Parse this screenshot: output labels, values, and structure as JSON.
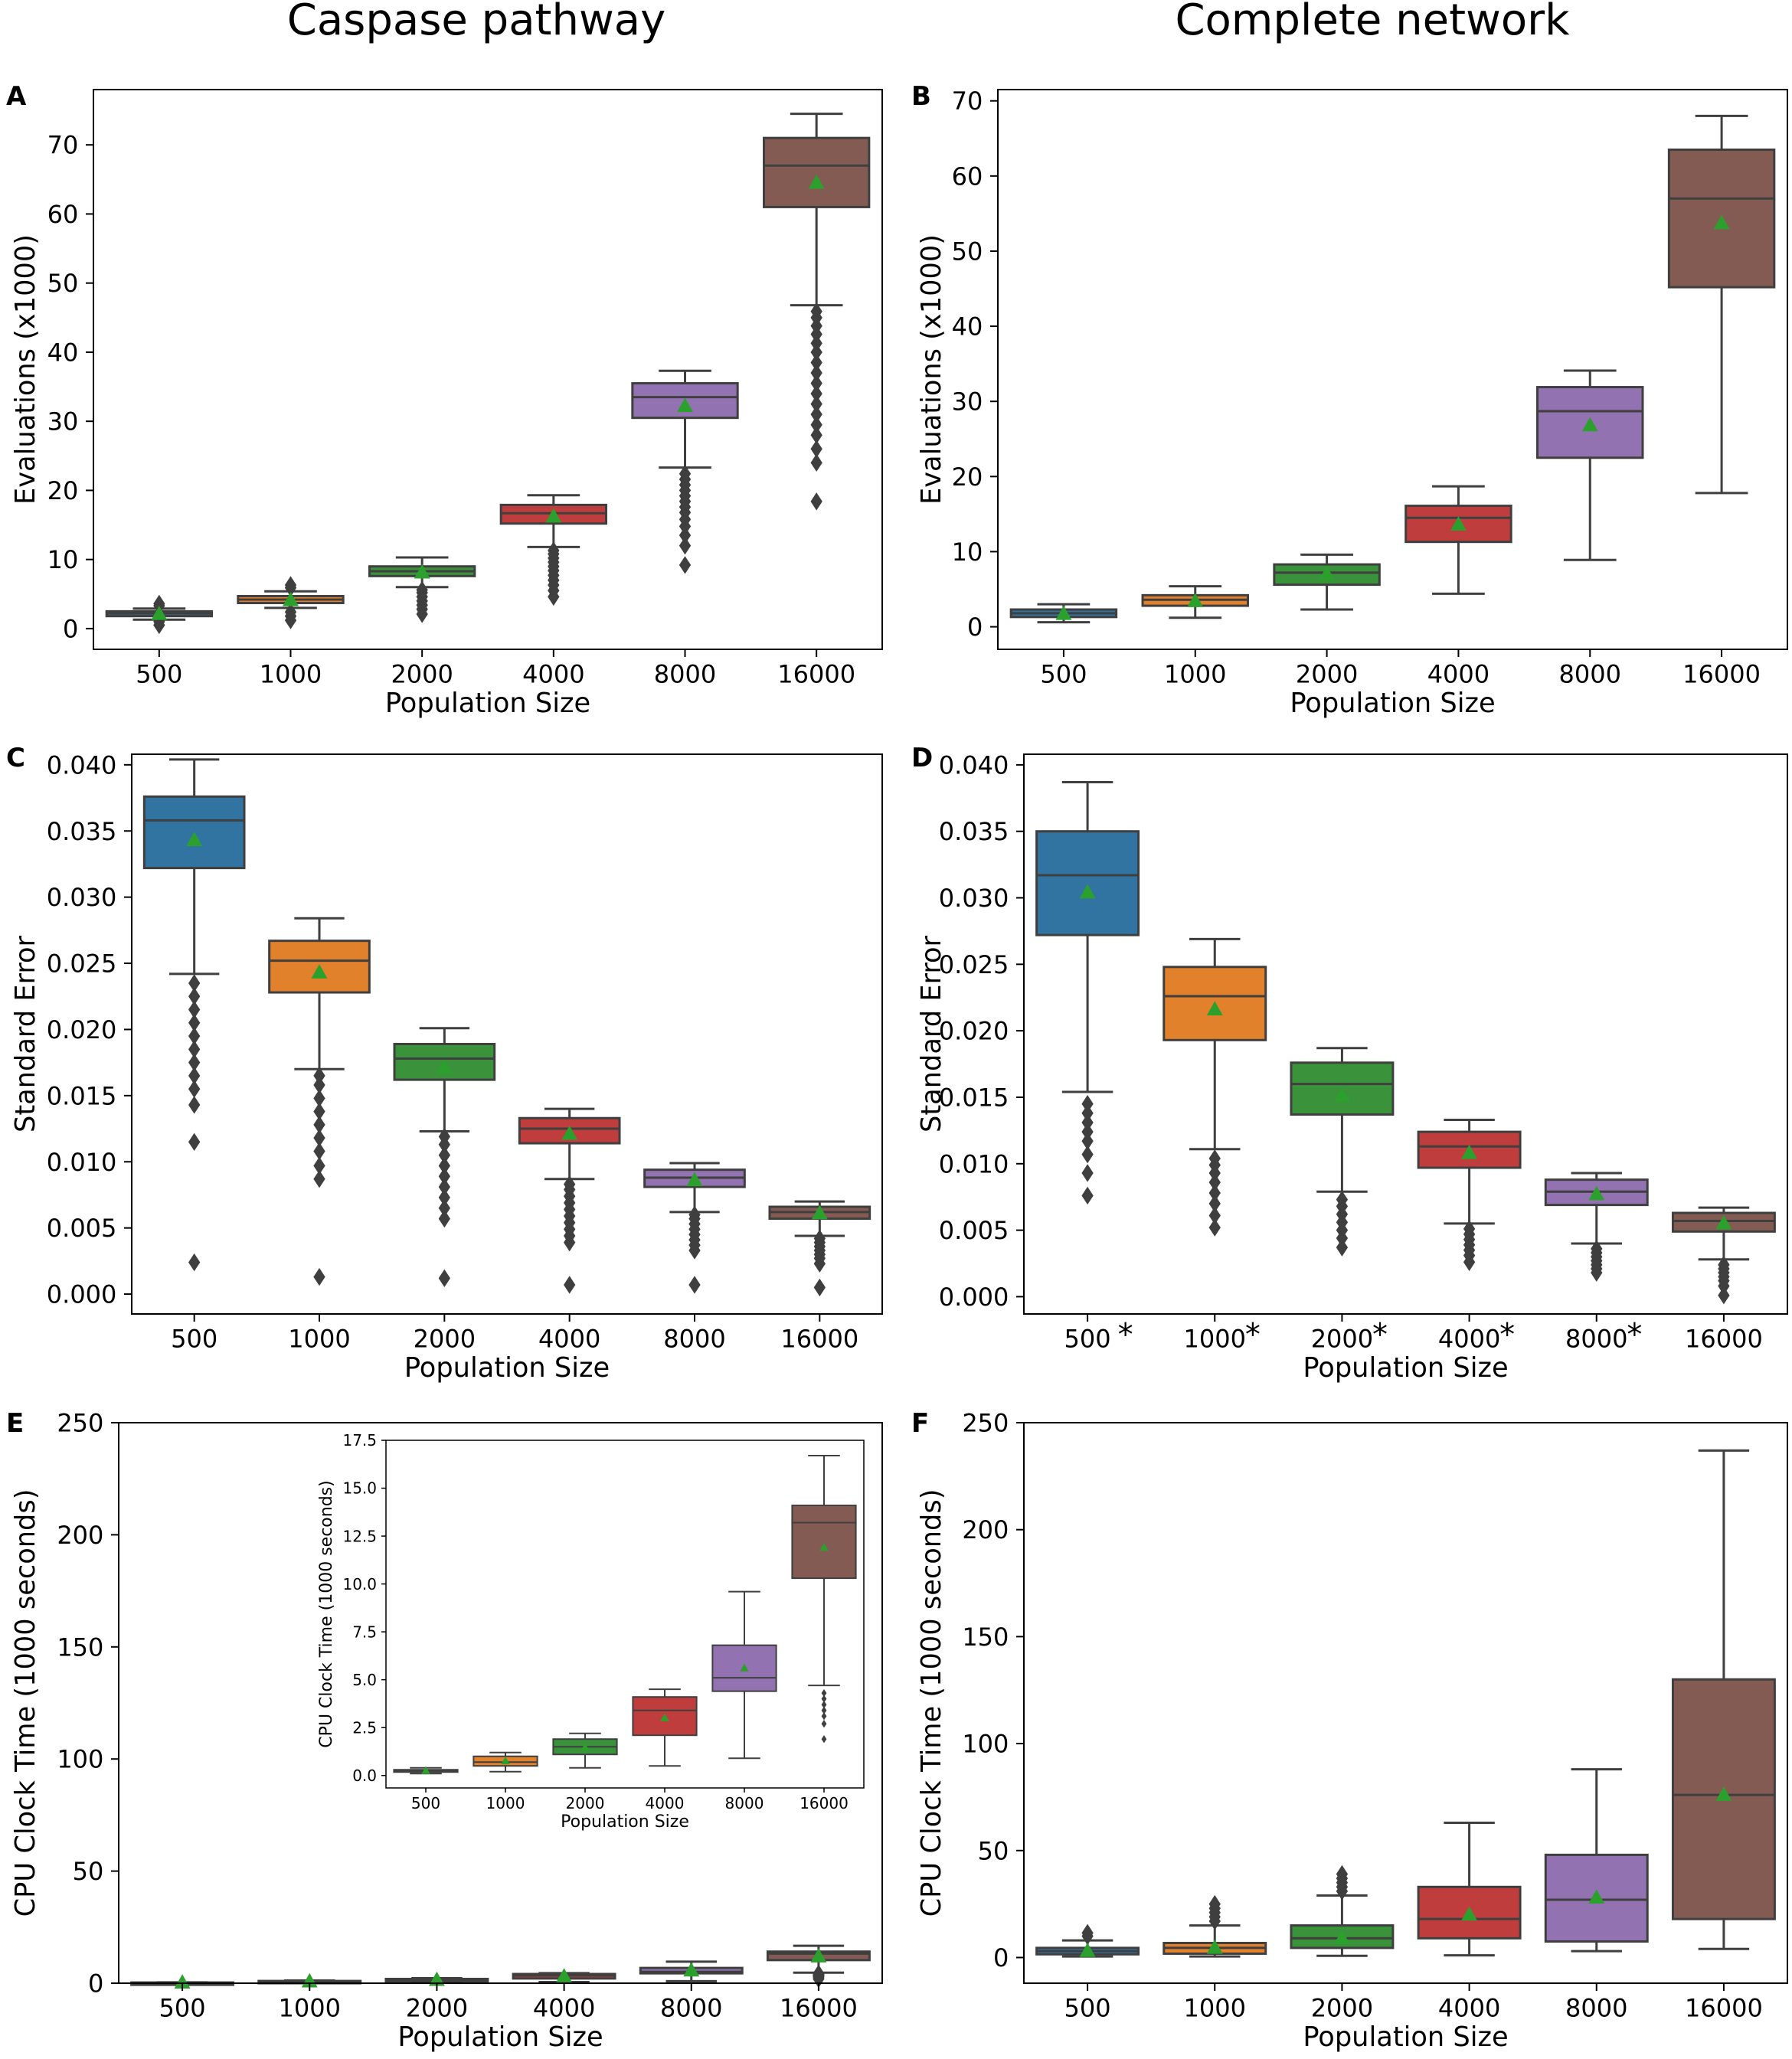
{
  "column_titles": [
    "Caspase pathway",
    "Complete network"
  ],
  "colors": {
    "box": [
      "#3274a1",
      "#e1812c",
      "#3a923a",
      "#c03d3e",
      "#9372b2",
      "#845b53"
    ],
    "median": "#3f3f3f",
    "mean_marker": "#2ca02c",
    "axis": "#000000"
  },
  "chart_data": [
    {
      "panel": "A",
      "type": "box",
      "column": "Caspase pathway",
      "xlabel": "Population Size",
      "ylabel": "Evaluations (x1000)",
      "categories": [
        "500",
        "1000",
        "2000",
        "4000",
        "8000",
        "16000"
      ],
      "ylim": [
        -3,
        78
      ],
      "yticks": [
        0,
        10,
        20,
        30,
        40,
        50,
        60,
        70
      ],
      "tick_decimals": 0,
      "boxes": [
        {
          "whislo": 1.3,
          "q1": 1.8,
          "med": 2.2,
          "q3": 2.5,
          "whishi": 2.9,
          "mean": 2.1,
          "fliers": [
            0.5,
            1.0,
            3.3,
            3.6
          ]
        },
        {
          "whislo": 3.0,
          "q1": 3.7,
          "med": 4.2,
          "q3": 4.7,
          "whishi": 5.4,
          "mean": 4.1,
          "fliers": [
            1.2,
            1.8,
            2.4,
            5.9,
            6.3
          ]
        },
        {
          "whislo": 6.0,
          "q1": 7.6,
          "med": 8.3,
          "q3": 9.0,
          "whishi": 10.3,
          "mean": 8.1,
          "fliers": [
            2.1,
            2.8,
            3.4,
            4.0,
            4.6,
            5.2,
            5.6
          ]
        },
        {
          "whislo": 11.8,
          "q1": 15.2,
          "med": 16.7,
          "q3": 17.9,
          "whishi": 19.3,
          "mean": 16.2,
          "fliers": [
            4.6,
            5.5,
            6.3,
            7.0,
            7.7,
            8.4,
            9.0,
            9.6,
            10.2,
            10.8,
            11.3
          ]
        },
        {
          "whislo": 23.3,
          "q1": 30.5,
          "med": 33.5,
          "q3": 35.5,
          "whishi": 37.3,
          "mean": 32.2,
          "fliers": [
            9.2,
            12.0,
            13.5,
            14.8,
            15.8,
            16.8,
            17.6,
            18.4,
            19.2,
            20.0,
            20.8,
            21.6,
            22.4
          ]
        },
        {
          "whislo": 46.8,
          "q1": 61.0,
          "med": 67.0,
          "q3": 71.0,
          "whishi": 74.5,
          "mean": 64.5,
          "fliers": [
            18.4,
            24.0,
            26.0,
            28.0,
            29.5,
            31.0,
            32.5,
            34.0,
            35.5,
            37.0,
            38.5,
            40.0,
            41.3,
            42.6,
            43.8,
            45.0,
            45.9
          ]
        }
      ]
    },
    {
      "panel": "B",
      "type": "box",
      "column": "Complete network",
      "xlabel": "Population Size",
      "ylabel": "Evaluations (x1000)",
      "categories": [
        "500",
        "1000",
        "2000",
        "4000",
        "8000",
        "16000"
      ],
      "ylim": [
        -3,
        71.5
      ],
      "yticks": [
        0,
        10,
        20,
        30,
        40,
        50,
        60,
        70
      ],
      "tick_decimals": 0,
      "boxes": [
        {
          "whislo": 0.6,
          "q1": 1.3,
          "med": 1.8,
          "q3": 2.3,
          "whishi": 3.0,
          "mean": 1.7,
          "fliers": []
        },
        {
          "whislo": 1.2,
          "q1": 2.8,
          "med": 3.6,
          "q3": 4.2,
          "whishi": 5.4,
          "mean": 3.4,
          "fliers": []
        },
        {
          "whislo": 2.3,
          "q1": 5.6,
          "med": 7.2,
          "q3": 8.3,
          "whishi": 9.6,
          "mean": 7.0,
          "fliers": []
        },
        {
          "whislo": 4.4,
          "q1": 11.3,
          "med": 14.5,
          "q3": 16.1,
          "whishi": 18.7,
          "mean": 13.6,
          "fliers": []
        },
        {
          "whislo": 8.9,
          "q1": 22.5,
          "med": 28.7,
          "q3": 31.9,
          "whishi": 34.1,
          "mean": 26.8,
          "fliers": []
        },
        {
          "whislo": 17.8,
          "q1": 45.2,
          "med": 57.0,
          "q3": 63.5,
          "whishi": 68.0,
          "mean": 53.7,
          "fliers": []
        }
      ]
    },
    {
      "panel": "C",
      "type": "box",
      "column": "Caspase pathway",
      "xlabel": "Population Size",
      "ylabel": "Standard Error",
      "categories": [
        "500",
        "1000",
        "2000",
        "4000",
        "8000",
        "16000"
      ],
      "ylim": [
        -0.0015,
        0.0408
      ],
      "yticks": [
        0.0,
        0.005,
        0.01,
        0.015,
        0.02,
        0.025,
        0.03,
        0.035,
        0.04
      ],
      "tick_decimals": 3,
      "boxes": [
        {
          "whislo": 0.0242,
          "q1": 0.0322,
          "med": 0.0358,
          "q3": 0.0376,
          "whishi": 0.0404,
          "mean": 0.0343,
          "fliers": [
            0.0024,
            0.0115,
            0.0143,
            0.0155,
            0.0165,
            0.0175,
            0.0185,
            0.0195,
            0.0205,
            0.0215,
            0.0225,
            0.0235
          ]
        },
        {
          "whislo": 0.017,
          "q1": 0.0228,
          "med": 0.0252,
          "q3": 0.0267,
          "whishi": 0.0284,
          "mean": 0.0243,
          "fliers": [
            0.0013,
            0.0087,
            0.0097,
            0.0108,
            0.0118,
            0.0128,
            0.0138,
            0.0148,
            0.0158,
            0.0165
          ]
        },
        {
          "whislo": 0.0123,
          "q1": 0.0162,
          "med": 0.0178,
          "q3": 0.0189,
          "whishi": 0.0201,
          "mean": 0.0171,
          "fliers": [
            0.0012,
            0.0057,
            0.0065,
            0.0073,
            0.0081,
            0.0089,
            0.0097,
            0.0105,
            0.0113,
            0.0119
          ]
        },
        {
          "whislo": 0.0087,
          "q1": 0.0114,
          "med": 0.0125,
          "q3": 0.0133,
          "whishi": 0.014,
          "mean": 0.0121,
          "fliers": [
            0.0007,
            0.0039,
            0.0044,
            0.0049,
            0.0054,
            0.0059,
            0.0064,
            0.0069,
            0.0074,
            0.0079,
            0.0083
          ]
        },
        {
          "whislo": 0.0062,
          "q1": 0.0081,
          "med": 0.0088,
          "q3": 0.0094,
          "whishi": 0.0099,
          "mean": 0.0086,
          "fliers": [
            0.0007,
            0.0033,
            0.0037,
            0.0041,
            0.0045,
            0.0049,
            0.0053,
            0.0057,
            0.006
          ]
        },
        {
          "whislo": 0.0044,
          "q1": 0.0057,
          "med": 0.0062,
          "q3": 0.0066,
          "whishi": 0.007,
          "mean": 0.0061,
          "fliers": [
            0.0005,
            0.0023,
            0.0027,
            0.003,
            0.0033,
            0.0036,
            0.0039,
            0.0042
          ]
        }
      ]
    },
    {
      "panel": "D",
      "type": "box",
      "column": "Complete network",
      "xlabel": "Population Size",
      "ylabel": "Standard Error",
      "categories": [
        "500",
        "1000",
        "2000",
        "4000",
        "8000",
        "16000"
      ],
      "category_marks": [
        "*",
        "*",
        "*",
        "*",
        "*",
        ""
      ],
      "ylim": [
        -0.0013,
        0.0408
      ],
      "yticks": [
        0.0,
        0.005,
        0.01,
        0.015,
        0.02,
        0.025,
        0.03,
        0.035,
        0.04
      ],
      "tick_decimals": 3,
      "boxes": [
        {
          "whislo": 0.0154,
          "q1": 0.0272,
          "med": 0.0317,
          "q3": 0.035,
          "whishi": 0.0387,
          "mean": 0.0304,
          "fliers": [
            0.0076,
            0.0093,
            0.0107,
            0.0117,
            0.0124,
            0.0131,
            0.0138,
            0.0145
          ]
        },
        {
          "whislo": 0.0111,
          "q1": 0.0193,
          "med": 0.0226,
          "q3": 0.0248,
          "whishi": 0.0269,
          "mean": 0.0216,
          "fliers": [
            0.0052,
            0.0061,
            0.007,
            0.0078,
            0.0086,
            0.0093,
            0.0099,
            0.0104
          ]
        },
        {
          "whislo": 0.0079,
          "q1": 0.0137,
          "med": 0.016,
          "q3": 0.0176,
          "whishi": 0.0187,
          "mean": 0.0151,
          "fliers": [
            0.0037,
            0.0044,
            0.005,
            0.0056,
            0.0062,
            0.0068,
            0.0073
          ]
        },
        {
          "whislo": 0.0055,
          "q1": 0.0097,
          "med": 0.0113,
          "q3": 0.0124,
          "whishi": 0.0133,
          "mean": 0.0108,
          "fliers": [
            0.0026,
            0.0031,
            0.0035,
            0.0039,
            0.0043,
            0.0047,
            0.0051
          ]
        },
        {
          "whislo": 0.004,
          "q1": 0.0069,
          "med": 0.0079,
          "q3": 0.0088,
          "whishi": 0.0093,
          "mean": 0.0077,
          "fliers": [
            0.0018,
            0.0021,
            0.0024,
            0.0027,
            0.003,
            0.0033,
            0.0036
          ]
        },
        {
          "whislo": 0.0028,
          "q1": 0.0049,
          "med": 0.0057,
          "q3": 0.0063,
          "whishi": 0.0067,
          "mean": 0.0055,
          "fliers": [
            0.0001,
            0.0008,
            0.0012,
            0.0015,
            0.0018,
            0.0021,
            0.0024
          ]
        }
      ]
    },
    {
      "panel": "E",
      "type": "box",
      "column": "Caspase pathway",
      "xlabel": "Population Size",
      "ylabel": "CPU Clock Time (1000 seconds)",
      "categories": [
        "500",
        "1000",
        "2000",
        "4000",
        "8000",
        "16000"
      ],
      "ylim": [
        0,
        250
      ],
      "yticks": [
        0,
        50,
        100,
        150,
        200,
        250
      ],
      "tick_decimals": 0,
      "boxes": [
        {
          "whislo": 0.1,
          "q1": 0.2,
          "med": 0.25,
          "q3": 0.3,
          "whishi": 0.4,
          "mean": 0.25,
          "fliers": []
        },
        {
          "whislo": 0.2,
          "q1": 0.5,
          "med": 0.7,
          "q3": 1.0,
          "whishi": 1.2,
          "mean": 0.75,
          "fliers": []
        },
        {
          "whislo": 0.4,
          "q1": 1.1,
          "med": 1.5,
          "q3": 1.9,
          "whishi": 2.2,
          "mean": 1.45,
          "fliers": []
        },
        {
          "whislo": 0.5,
          "q1": 2.1,
          "med": 3.4,
          "q3": 4.1,
          "whishi": 4.5,
          "mean": 3.0,
          "fliers": []
        },
        {
          "whislo": 0.9,
          "q1": 4.4,
          "med": 5.1,
          "q3": 6.8,
          "whishi": 9.6,
          "mean": 5.6,
          "fliers": []
        },
        {
          "whislo": 4.7,
          "q1": 10.3,
          "med": 13.2,
          "q3": 14.1,
          "whishi": 16.7,
          "mean": 11.9,
          "fliers": [
            1.9,
            2.7,
            3.1,
            3.4,
            3.7,
            4.0,
            4.3
          ]
        }
      ],
      "inset": {
        "type": "box",
        "xlabel": "Population Size",
        "ylabel": "CPU Clock Time (1000 seconds)",
        "categories": [
          "500",
          "1000",
          "2000",
          "4000",
          "8000",
          "16000"
        ],
        "ylim": [
          -0.65,
          17.5
        ],
        "yticks": [
          0.0,
          2.5,
          5.0,
          7.5,
          10.0,
          12.5,
          15.0,
          17.5
        ],
        "tick_decimals": 1
      }
    },
    {
      "panel": "F",
      "type": "box",
      "column": "Complete network",
      "xlabel": "Population Size",
      "ylabel": "CPU Clock Time (1000 seconds)",
      "categories": [
        "500",
        "1000",
        "2000",
        "4000",
        "8000",
        "16000"
      ],
      "ylim": [
        -12,
        250
      ],
      "yticks": [
        0,
        50,
        100,
        150,
        200,
        250
      ],
      "tick_decimals": 0,
      "boxes": [
        {
          "whislo": 0.5,
          "q1": 1.5,
          "med": 3.0,
          "q3": 4.5,
          "whishi": 8.0,
          "mean": 3.0,
          "fliers": [
            10.0,
            11.5
          ]
        },
        {
          "whislo": 0.5,
          "q1": 1.8,
          "med": 4.5,
          "q3": 6.8,
          "whishi": 15.0,
          "mean": 4.5,
          "fliers": [
            17.0,
            19.0,
            21.0,
            23.0,
            25.0
          ]
        },
        {
          "whislo": 0.8,
          "q1": 4.5,
          "med": 9.0,
          "q3": 15.0,
          "whishi": 29.0,
          "mean": 9.0,
          "fliers": [
            31.0,
            33.0,
            35.0,
            37.0,
            39.0
          ]
        },
        {
          "whislo": 1.0,
          "q1": 9.0,
          "med": 18.0,
          "q3": 33.0,
          "whishi": 63.0,
          "mean": 20.0,
          "fliers": []
        },
        {
          "whislo": 3.0,
          "q1": 7.5,
          "med": 27.0,
          "q3": 48.0,
          "whishi": 88.0,
          "mean": 28.0,
          "fliers": []
        },
        {
          "whislo": 4.0,
          "q1": 18.0,
          "med": 76.0,
          "q3": 130.0,
          "whishi": 237.0,
          "mean": 76.0,
          "fliers": []
        }
      ]
    }
  ]
}
